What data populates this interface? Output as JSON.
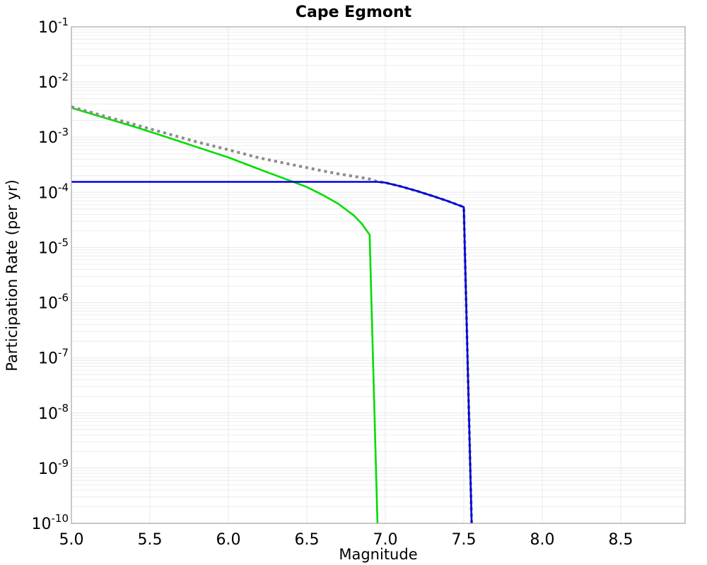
{
  "title": "Cape Egmont",
  "chart_data": {
    "type": "line",
    "title": "Cape Egmont",
    "xlabel": "Magnitude",
    "ylabel": "Participation Rate (per yr)",
    "legend": "none",
    "x_axis": {
      "min": 5.0,
      "max": 8.91,
      "tick_values": [
        5.0,
        5.5,
        6.0,
        6.5,
        7.0,
        7.5,
        8.0,
        8.5
      ],
      "tick_labels": [
        "5.0",
        "5.5",
        "6.0",
        "6.5",
        "7.0",
        "7.5",
        "8.0",
        "8.5"
      ]
    },
    "y_axis": {
      "scale": "log",
      "max_exp": -1,
      "min_exp": -10,
      "tick_base": "10",
      "tick_exponents": [
        "-1",
        "-2",
        "-3",
        "-4",
        "-5",
        "-6",
        "-7",
        "-8",
        "-9",
        "-10"
      ]
    },
    "grid": {
      "major": true,
      "minor_log": true,
      "color": "#e8e8e8",
      "frame_color": "#a3a3a3"
    },
    "series": [
      {
        "name": "green-curve",
        "color": "#00dd00",
        "style": "solid",
        "width": 2.6,
        "points": [
          [
            5.0,
            0.0034
          ],
          [
            5.2,
            0.0023
          ],
          [
            5.4,
            0.00155
          ],
          [
            5.6,
            0.00102
          ],
          [
            5.8,
            0.00066
          ],
          [
            6.0,
            0.00043
          ],
          [
            6.2,
            0.00026
          ],
          [
            6.4,
            0.00016
          ],
          [
            6.5,
            0.000125
          ],
          [
            6.6,
            9e-05
          ],
          [
            6.7,
            6.2e-05
          ],
          [
            6.8,
            3.8e-05
          ],
          [
            6.85,
            2.7e-05
          ],
          [
            6.9,
            1.7e-05
          ],
          [
            6.95,
            1e-10
          ]
        ]
      },
      {
        "name": "gray-dotted-total-curve",
        "color": "#8c8c8c",
        "style": "dotted",
        "width": 4,
        "points": [
          [
            5.0,
            0.00355
          ],
          [
            5.2,
            0.00245
          ],
          [
            5.4,
            0.0017
          ],
          [
            5.6,
            0.00118
          ],
          [
            5.8,
            0.00082
          ],
          [
            6.0,
            0.00059
          ],
          [
            6.2,
            0.00042
          ],
          [
            6.4,
            0.00032
          ],
          [
            6.5,
            0.00028
          ],
          [
            6.6,
            0.000245
          ],
          [
            6.7,
            0.000217
          ],
          [
            6.8,
            0.000195
          ],
          [
            6.9,
            0.000174
          ],
          [
            6.95,
            0.000156
          ],
          [
            7.0,
            0.00015
          ],
          [
            7.1,
            0.000128
          ],
          [
            7.2,
            0.000106
          ],
          [
            7.3,
            8.6e-05
          ],
          [
            7.4,
            6.9e-05
          ],
          [
            7.5,
            5.4e-05
          ],
          [
            7.55,
            1e-10
          ]
        ]
      },
      {
        "name": "blue-curve",
        "color": "#0000dd",
        "style": "solid",
        "width": 2.6,
        "points": [
          [
            5.0,
            0.000155
          ],
          [
            6.95,
            0.000155
          ],
          [
            7.0,
            0.00015
          ],
          [
            7.1,
            0.000128
          ],
          [
            7.2,
            0.000106
          ],
          [
            7.3,
            8.6e-05
          ],
          [
            7.4,
            6.9e-05
          ],
          [
            7.5,
            5.4e-05
          ],
          [
            7.55,
            1e-10
          ]
        ]
      }
    ]
  }
}
